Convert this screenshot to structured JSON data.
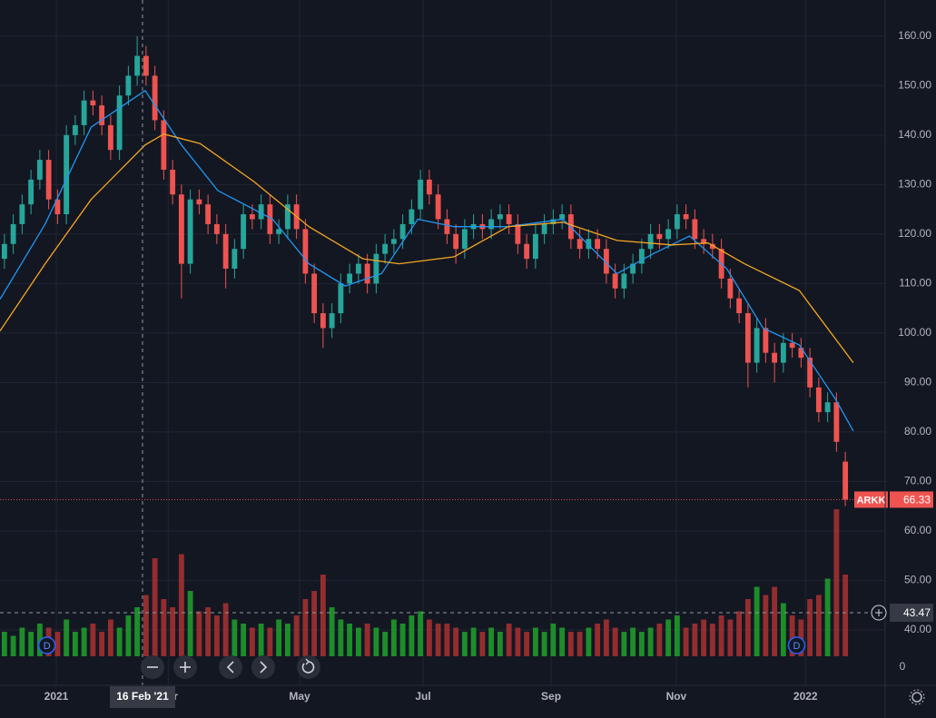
{
  "chart_data": {
    "type": "candlestick",
    "symbol": "ARKK",
    "last": 66.33,
    "up_color": "#26a69a",
    "down_color": "#ef5350",
    "volume_up_color": "#1f9a2a",
    "volume_down_color": "#a33030",
    "xlim": [
      -0.5,
      99.5
    ],
    "ylim": [
      28.8,
      167.3
    ],
    "vlim": [
      0,
      40
    ],
    "xticks": [
      {
        "value": 5.86,
        "label": "2021"
      },
      {
        "value": 18.5,
        "label": "Mar"
      },
      {
        "value": 33.35,
        "label": "May"
      },
      {
        "value": 47.3,
        "label": "Jul"
      },
      {
        "value": 61.76,
        "label": "Sep"
      },
      {
        "value": 75.9,
        "label": "Nov"
      },
      {
        "value": 90.5,
        "label": "2022"
      }
    ],
    "yticks": [
      {
        "value": 160,
        "label": "160.00"
      },
      {
        "value": 150,
        "label": "150.00"
      },
      {
        "value": 140,
        "label": "140.00"
      },
      {
        "value": 130,
        "label": "130.00"
      },
      {
        "value": 120,
        "label": "120.00"
      },
      {
        "value": 110,
        "label": "110.00"
      },
      {
        "value": 100,
        "label": "100.00"
      },
      {
        "value": 90,
        "label": "90.00"
      },
      {
        "value": 80,
        "label": "80.00"
      },
      {
        "value": 70,
        "label": "70.00"
      },
      {
        "value": 60,
        "label": "60.00"
      },
      {
        "value": 50,
        "label": "50.00"
      },
      {
        "value": 40,
        "label": "40.00"
      }
    ],
    "vticks": [
      0
    ],
    "grid": true,
    "open": [
      115,
      118,
      122,
      126,
      131,
      135,
      127,
      124,
      140,
      142,
      147,
      146,
      142,
      137,
      148,
      152,
      156,
      152,
      143,
      133,
      128,
      114,
      127,
      126,
      122,
      120,
      113,
      117,
      124,
      123,
      126,
      120,
      121,
      126,
      121,
      112,
      104,
      101,
      104,
      110,
      112,
      114,
      110,
      116,
      118,
      119,
      122,
      125,
      131,
      128,
      123,
      120,
      117,
      121,
      122,
      121,
      123,
      124,
      122,
      118,
      115,
      120,
      122,
      123,
      124,
      119,
      117,
      119,
      117,
      112,
      109,
      112,
      114,
      117,
      120,
      119,
      121,
      124,
      123,
      119,
      118,
      117,
      111,
      107,
      104,
      94,
      101,
      96,
      94,
      98,
      97,
      95,
      89,
      84,
      86,
      74
    ],
    "high": [
      120,
      124,
      128,
      133,
      137,
      137,
      129,
      142,
      144,
      149,
      149,
      148,
      144,
      150,
      154,
      160,
      158,
      154,
      145,
      135,
      130,
      129,
      129,
      128,
      124,
      122,
      119,
      126,
      126,
      128,
      128,
      123,
      128,
      128,
      123,
      114,
      106,
      106,
      112,
      114,
      116,
      116,
      118,
      120,
      121,
      124,
      127,
      133,
      133,
      130,
      125,
      122,
      123,
      124,
      124,
      125,
      126,
      126,
      124,
      120,
      122,
      124,
      125,
      126,
      126,
      121,
      121,
      121,
      119,
      114,
      114,
      116,
      119,
      122,
      122,
      123,
      126,
      126,
      125,
      121,
      120,
      119,
      113,
      109,
      106,
      103,
      103,
      98,
      100,
      100,
      99,
      97,
      91,
      88,
      88,
      76
    ],
    "low": [
      113,
      116,
      120,
      124,
      129,
      125,
      122,
      122,
      138,
      140,
      144,
      140,
      135,
      135,
      146,
      150,
      150,
      141,
      131,
      126,
      107,
      112,
      124,
      120,
      118,
      109,
      111,
      115,
      121,
      121,
      118,
      118,
      119,
      119,
      110,
      102,
      97,
      99,
      102,
      108,
      110,
      108,
      108,
      114,
      116,
      117,
      120,
      123,
      126,
      121,
      118,
      114,
      115,
      119,
      119,
      119,
      121,
      120,
      116,
      113,
      113,
      118,
      120,
      121,
      117,
      115,
      115,
      115,
      110,
      107,
      107,
      110,
      112,
      115,
      117,
      117,
      119,
      121,
      117,
      116,
      115,
      109,
      105,
      102,
      89,
      92,
      94,
      90,
      92,
      95,
      93,
      87,
      82,
      82,
      76,
      65
    ],
    "close": [
      118,
      122,
      126,
      131,
      135,
      127,
      124,
      140,
      142,
      147,
      146,
      142,
      137,
      148,
      152,
      156,
      152,
      143,
      133,
      128,
      114,
      127,
      126,
      122,
      120,
      113,
      117,
      124,
      123,
      126,
      120,
      121,
      126,
      121,
      112,
      104,
      101,
      104,
      110,
      112,
      114,
      110,
      116,
      118,
      119,
      122,
      125,
      131,
      128,
      123,
      120,
      117,
      121,
      122,
      121,
      123,
      124,
      122,
      118,
      115,
      120,
      122,
      123,
      124,
      119,
      117,
      119,
      117,
      112,
      109,
      112,
      114,
      117,
      120,
      119,
      121,
      124,
      123,
      119,
      118,
      117,
      111,
      107,
      104,
      94,
      101,
      96,
      94,
      98,
      97,
      95,
      89,
      84,
      86,
      78,
      66.33
    ],
    "volume": [
      6,
      5,
      7,
      6,
      8,
      7,
      6,
      9,
      6,
      7,
      8,
      6,
      9,
      7,
      10,
      12,
      15,
      24,
      14,
      12,
      25,
      16,
      11,
      12,
      10,
      13,
      9,
      8,
      7,
      8,
      7,
      9,
      8,
      10,
      14,
      16,
      20,
      12,
      9,
      8,
      7,
      8,
      7,
      6,
      9,
      8,
      10,
      11,
      9,
      8,
      8,
      7,
      6,
      7,
      6,
      7,
      6,
      8,
      7,
      6,
      7,
      6,
      8,
      7,
      6,
      6,
      7,
      8,
      9,
      7,
      6,
      7,
      6,
      7,
      8,
      9,
      10,
      7,
      8,
      9,
      8,
      10,
      9,
      11,
      14,
      17,
      15,
      17,
      13,
      10,
      9,
      14,
      15,
      19,
      36,
      20
    ],
    "series": [
      {
        "color": "#2196f3",
        "x": [
          -0.5,
          4.6,
          9.8,
          15.9,
          20,
          24.1,
          30.3,
          34.4,
          38.5,
          42.6,
          46.7,
          50.8,
          56.9,
          63.1,
          69.2,
          73.3,
          77.4,
          81.6,
          85.7,
          89.8,
          93.9,
          95.9
        ],
        "values": [
          106.8,
          122,
          141.6,
          149,
          138,
          128.8,
          123,
          114,
          109.5,
          112,
          123,
          121.5,
          121.5,
          123,
          112,
          116,
          119.6,
          113,
          101,
          97.6,
          86.6,
          80.2
        ]
      },
      {
        "color": "#f5a623",
        "x": [
          -0.5,
          4.6,
          9.8,
          15.9,
          18,
          22.1,
          28.2,
          34.4,
          40.5,
          44.6,
          50.8,
          56.9,
          63.1,
          69.2,
          75.4,
          79.5,
          83.6,
          89.8,
          95.9
        ],
        "values": [
          100.4,
          114,
          127,
          138,
          140.2,
          138.3,
          130.6,
          121.5,
          115,
          114,
          115.4,
          121.5,
          122.4,
          118.7,
          117.8,
          118.2,
          114,
          108.6,
          94
        ]
      }
    ],
    "markers": [
      {
        "x": 4.8,
        "label": "D"
      },
      {
        "x": 89.5,
        "label": "D"
      }
    ],
    "crosshair": {
      "x": 15.6,
      "label": "16 Feb '21",
      "price": 43.47
    }
  }
}
